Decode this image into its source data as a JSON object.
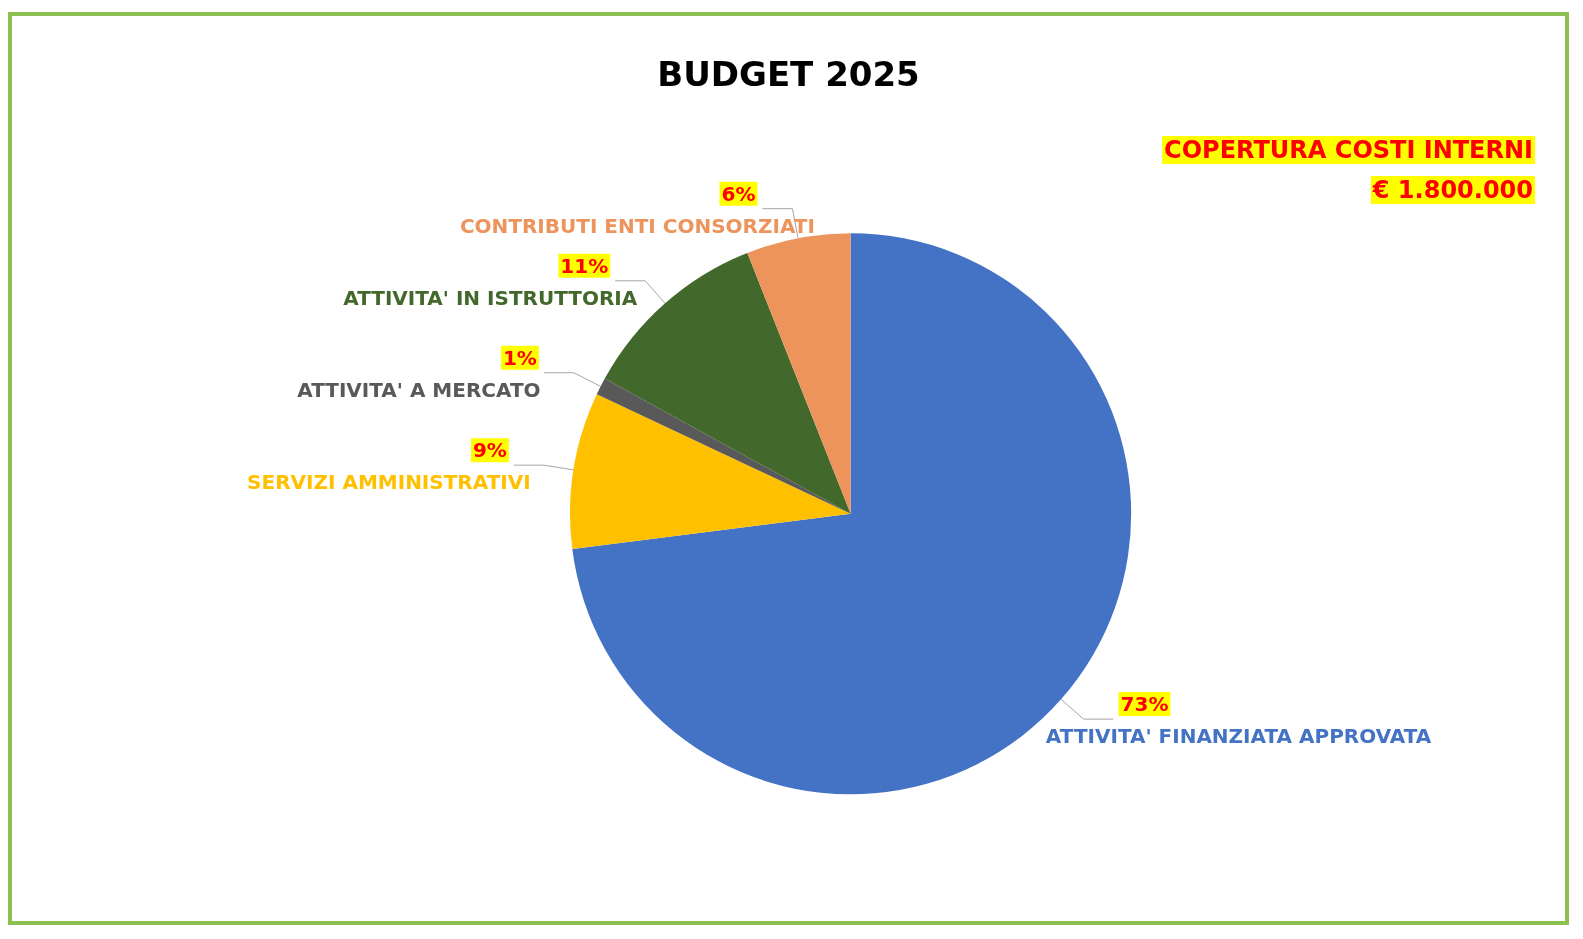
{
  "chart_data": {
    "type": "pie",
    "title": "BUDGET 2025",
    "categories": [
      "ATTIVITA' FINANZIATA APPROVATA",
      "SERVIZI AMMINISTRATIVI",
      "ATTIVITA' A MERCATO",
      "ATTIVITA' IN ISTRUTTORIA",
      "CONTRIBUTI ENTI CONSORZIATI"
    ],
    "values": [
      73,
      9,
      1,
      11,
      6
    ],
    "value_labels": [
      "73%",
      "9%",
      "1%",
      "11%",
      "6%"
    ],
    "colors": [
      "#4472c4",
      "#ffc000",
      "#595959",
      "#43682b",
      "#ed945c"
    ],
    "annotations": [
      "COPERTURA COSTI INTERNI",
      "€ 1.800.000"
    ],
    "legend": false
  }
}
